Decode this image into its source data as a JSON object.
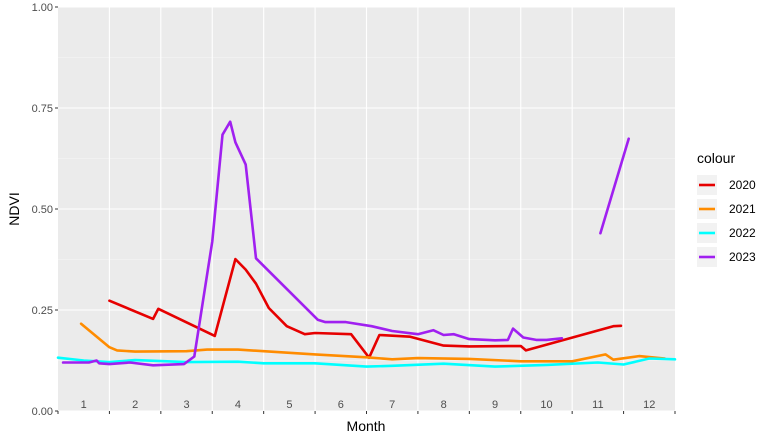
{
  "chart_data": {
    "type": "line",
    "xlabel": "Month",
    "ylabel": "NDVI",
    "xlim": [
      0.5,
      12.5
    ],
    "ylim": [
      0,
      1
    ],
    "x_tick_labels": [
      "1",
      "2",
      "3",
      "4",
      "5",
      "6",
      "7",
      "8",
      "9",
      "10",
      "11",
      "12"
    ],
    "y_ticks": [
      0,
      0.25,
      0.5,
      0.75,
      1
    ],
    "y_tick_labels": [
      "0.00",
      "0.25",
      "0.50",
      "0.75",
      "1.00"
    ],
    "grid": true,
    "legend": {
      "title": "colour",
      "position": "right"
    },
    "series": [
      {
        "name": "2020",
        "color": "#e60000",
        "segments": [
          [
            [
              1.5,
              0.273
            ],
            [
              2.35,
              0.228
            ],
            [
              2.45,
              0.253
            ],
            [
              3.55,
              0.186
            ],
            [
              3.95,
              0.376
            ],
            [
              4.15,
              0.35
            ],
            [
              4.35,
              0.315
            ],
            [
              4.6,
              0.255
            ],
            [
              4.95,
              0.21
            ],
            [
              5.3,
              0.19
            ],
            [
              5.5,
              0.193
            ],
            [
              6.2,
              0.19
            ],
            [
              6.55,
              0.132
            ],
            [
              6.75,
              0.188
            ],
            [
              7.35,
              0.184
            ],
            [
              8.0,
              0.162
            ],
            [
              8.5,
              0.16
            ],
            [
              9.5,
              0.161
            ],
            [
              9.6,
              0.15
            ],
            [
              11.3,
              0.21
            ],
            [
              11.45,
              0.211
            ]
          ]
        ]
      },
      {
        "name": "2021",
        "color": "#ff8c00",
        "segments": [
          [
            [
              0.95,
              0.216
            ],
            [
              1.5,
              0.158
            ],
            [
              1.65,
              0.15
            ],
            [
              2.0,
              0.147
            ],
            [
              3.0,
              0.148
            ],
            [
              3.4,
              0.152
            ],
            [
              4.0,
              0.152
            ],
            [
              4.5,
              0.148
            ],
            [
              5.5,
              0.14
            ],
            [
              6.5,
              0.133
            ],
            [
              7.0,
              0.128
            ],
            [
              7.5,
              0.131
            ],
            [
              8.5,
              0.129
            ],
            [
              9.5,
              0.123
            ],
            [
              10.5,
              0.123
            ],
            [
              11.15,
              0.14
            ],
            [
              11.3,
              0.127
            ],
            [
              11.8,
              0.136
            ],
            [
              12.3,
              0.13
            ]
          ]
        ]
      },
      {
        "name": "2022",
        "color": "#00ffff",
        "segments": [
          [
            [
              0.5,
              0.132
            ],
            [
              1.0,
              0.125
            ],
            [
              1.5,
              0.121
            ],
            [
              2.0,
              0.126
            ],
            [
              3.0,
              0.121
            ],
            [
              4.0,
              0.122
            ],
            [
              4.5,
              0.118
            ],
            [
              5.5,
              0.118
            ],
            [
              6.5,
              0.11
            ],
            [
              7.0,
              0.112
            ],
            [
              8.0,
              0.117
            ],
            [
              9.0,
              0.11
            ],
            [
              10.0,
              0.114
            ],
            [
              11.0,
              0.12
            ],
            [
              11.5,
              0.115
            ],
            [
              12.0,
              0.13
            ],
            [
              12.5,
              0.128
            ]
          ]
        ]
      },
      {
        "name": "2023",
        "color": "#a020f0",
        "segments": [
          [
            [
              0.6,
              0.12
            ],
            [
              1.1,
              0.12
            ],
            [
              1.25,
              0.125
            ],
            [
              1.3,
              0.118
            ],
            [
              1.5,
              0.116
            ],
            [
              1.9,
              0.12
            ],
            [
              2.35,
              0.113
            ],
            [
              2.95,
              0.116
            ],
            [
              3.15,
              0.135
            ],
            [
              3.5,
              0.42
            ],
            [
              3.7,
              0.684
            ],
            [
              3.85,
              0.716
            ],
            [
              3.95,
              0.665
            ],
            [
              4.15,
              0.61
            ],
            [
              4.35,
              0.378
            ],
            [
              5.55,
              0.226
            ],
            [
              5.7,
              0.22
            ],
            [
              6.1,
              0.22
            ],
            [
              6.6,
              0.21
            ],
            [
              7.0,
              0.198
            ],
            [
              7.5,
              0.19
            ],
            [
              7.8,
              0.2
            ],
            [
              8.0,
              0.188
            ],
            [
              8.2,
              0.19
            ],
            [
              8.5,
              0.178
            ],
            [
              9.0,
              0.175
            ],
            [
              9.25,
              0.176
            ],
            [
              9.35,
              0.204
            ],
            [
              9.55,
              0.182
            ],
            [
              9.8,
              0.176
            ],
            [
              10.0,
              0.176
            ],
            [
              10.3,
              0.18
            ]
          ],
          [
            [
              11.05,
              0.44
            ],
            [
              11.6,
              0.674
            ]
          ]
        ]
      }
    ]
  }
}
